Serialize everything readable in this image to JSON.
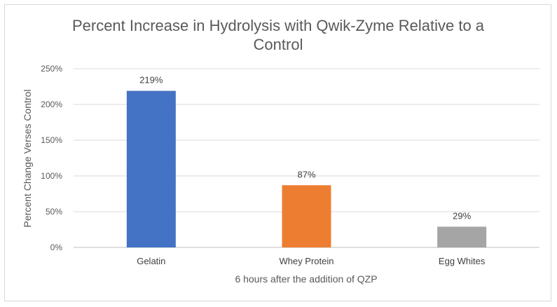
{
  "chart_data": {
    "type": "bar",
    "title_lines": [
      "Percent Increase in Hydrolysis with Qwik-Zyme Relative to a",
      "Control"
    ],
    "xlabel": "6 hours after the addition of QZP",
    "ylabel": "Percent Change Verses Control",
    "categories": [
      "Gelatin",
      "Whey Protein",
      "Egg Whites"
    ],
    "values": [
      219,
      87,
      29
    ],
    "data_labels": [
      "219%",
      "87%",
      "29%"
    ],
    "colors": [
      "#4472c4",
      "#ed7d31",
      "#a5a5a5"
    ],
    "ylim": [
      0,
      250
    ],
    "yticks": [
      0,
      50,
      100,
      150,
      200,
      250
    ],
    "ytick_labels": [
      "0%",
      "50%",
      "100%",
      "150%",
      "200%",
      "250%"
    ],
    "grid": true,
    "legend": "none"
  }
}
